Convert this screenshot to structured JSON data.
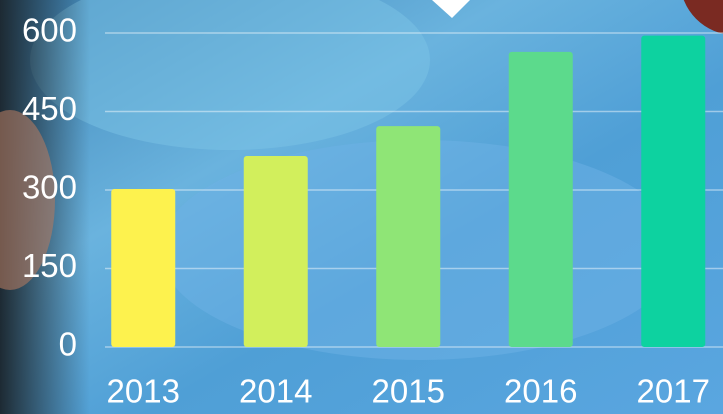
{
  "chart_data": {
    "type": "bar",
    "categories": [
      "2013",
      "2014",
      "2015",
      "2016",
      "2017"
    ],
    "values": [
      302,
      365,
      422,
      564,
      595
    ],
    "colors": [
      "#fdf24e",
      "#d2ef5c",
      "#8fe576",
      "#5cda8c",
      "#0dd2a0"
    ],
    "ylim": [
      0,
      600
    ],
    "yticks": [
      0,
      150,
      300,
      450,
      600
    ],
    "grid": true
  }
}
